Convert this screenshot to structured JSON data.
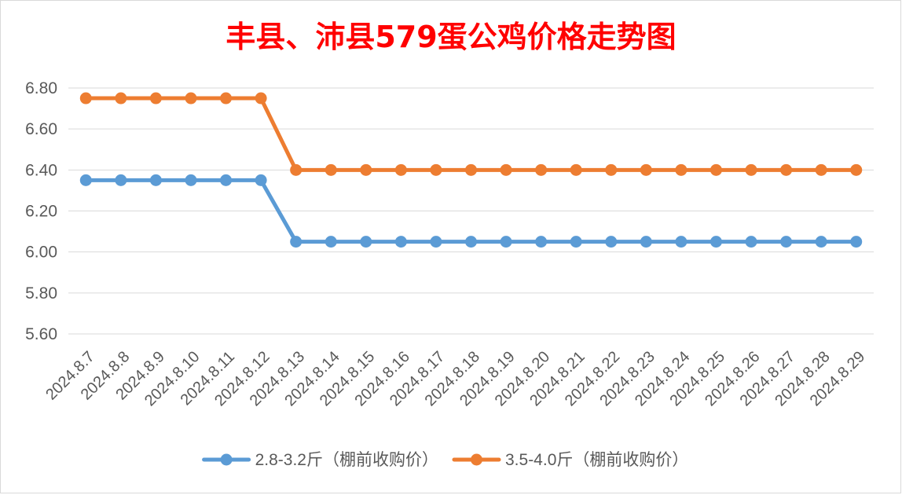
{
  "chart_data": {
    "type": "line",
    "title": "丰县、沛县579蛋公鸡价格走势图",
    "title_color": "#FF0000",
    "categories": [
      "2024.8.7",
      "2024.8.8",
      "2024.8.9",
      "2024.8.10",
      "2024.8.11",
      "2024.8.12",
      "2024.8.13",
      "2024.8.14",
      "2024.8.15",
      "2024.8.16",
      "2024.8.17",
      "2024.8.18",
      "2024.8.19",
      "2024.8.20",
      "2024.8.21",
      "2024.8.22",
      "2024.8.23",
      "2024.8.24",
      "2024.8.25",
      "2024.8.26",
      "2024.8.27",
      "2024.8.28",
      "2024.8.29"
    ],
    "series": [
      {
        "name": "2.8-3.2斤（棚前收购价）",
        "color": "#5B9BD5",
        "values": [
          6.35,
          6.35,
          6.35,
          6.35,
          6.35,
          6.35,
          6.05,
          6.05,
          6.05,
          6.05,
          6.05,
          6.05,
          6.05,
          6.05,
          6.05,
          6.05,
          6.05,
          6.05,
          6.05,
          6.05,
          6.05,
          6.05,
          6.05
        ]
      },
      {
        "name": "3.5-4.0斤（棚前收购价）",
        "color": "#ED7D31",
        "values": [
          6.75,
          6.75,
          6.75,
          6.75,
          6.75,
          6.75,
          6.4,
          6.4,
          6.4,
          6.4,
          6.4,
          6.4,
          6.4,
          6.4,
          6.4,
          6.4,
          6.4,
          6.4,
          6.4,
          6.4,
          6.4,
          6.4,
          6.4
        ]
      }
    ],
    "ylim": [
      5.6,
      6.8
    ],
    "yticks": [
      5.6,
      5.8,
      6.0,
      6.2,
      6.4,
      6.6,
      6.8
    ],
    "ytick_labels": [
      "5.60",
      "5.80",
      "6.00",
      "6.20",
      "6.40",
      "6.60",
      "6.80"
    ],
    "grid": true,
    "legend": "bottom"
  }
}
